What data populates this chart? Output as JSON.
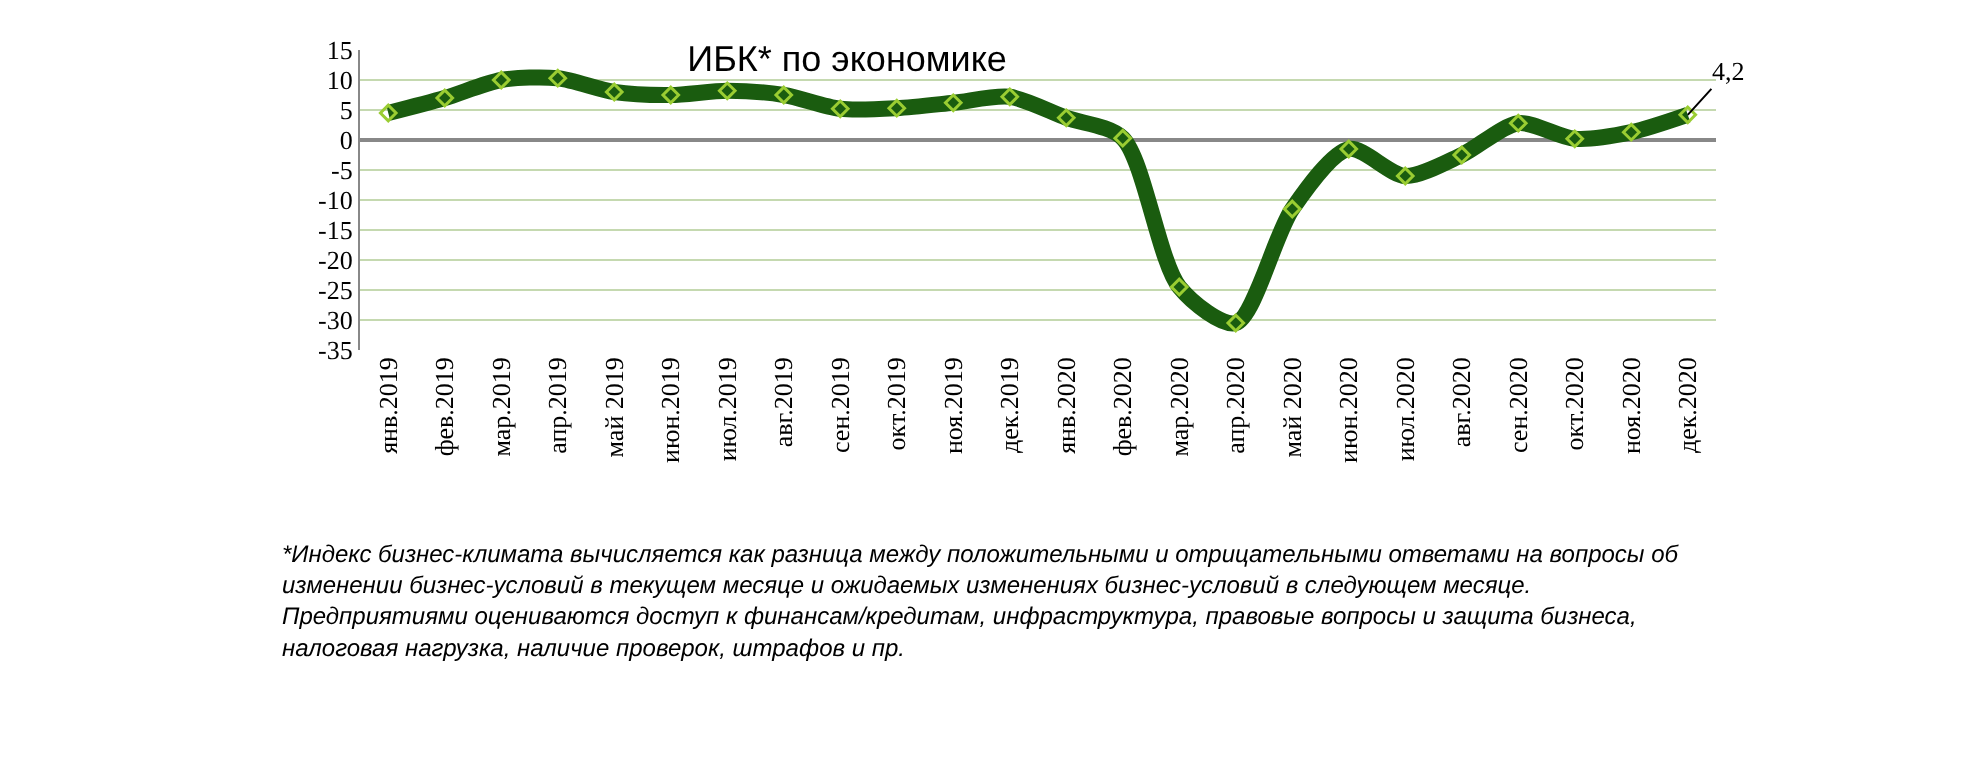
{
  "chart_data": {
    "type": "line",
    "title": "ИБК* по экономике",
    "categories": [
      "янв.2019",
      "фев.2019",
      "мар.2019",
      "апр.2019",
      "май 2019",
      "июн.2019",
      "июл.2019",
      "авг.2019",
      "сен.2019",
      "окт.2019",
      "ноя.2019",
      "дек.2019",
      "янв.2020",
      "фев.2020",
      "мар.2020",
      "апр.2020",
      "май 2020",
      "июн.2020",
      "июл.2020",
      "авг.2020",
      "сен.2020",
      "окт.2020",
      "ноя.2020",
      "дек.2020"
    ],
    "series": [
      {
        "color": "#1a5c0f",
        "values": [
          4.5,
          7,
          10,
          10.3,
          8,
          7.5,
          8.2,
          7.5,
          5.2,
          5.3,
          6.2,
          7.2,
          3.7,
          0.3,
          -24.5,
          -30.5,
          -11.5,
          -1.5,
          -6,
          -2.5,
          2.8,
          0.2,
          1.3,
          4.2
        ],
        "value_labels": [
          null,
          null,
          null,
          null,
          null,
          null,
          null,
          null,
          null,
          null,
          null,
          null,
          null,
          null,
          null,
          null,
          null,
          null,
          null,
          null,
          null,
          null,
          null,
          "4,2"
        ]
      }
    ],
    "ylim": [
      -35,
      15
    ],
    "yticks": [
      -35,
      -30,
      -25,
      -20,
      -15,
      -10,
      -5,
      0,
      5,
      10,
      15
    ],
    "grid": "y",
    "legend": false,
    "marker": "diamond",
    "line_style": "solid",
    "annotations": [
      "*Индекс бизнес-климата вычисляется как разница между положительными и отрицательными ответами на вопросы об изменении бизнес-условий в текущем месяце и ожидаемых изменениях бизнес-условий в следующем месяце. Предприятиями оцениваются доступ к финансам/кредитам, инфраструктура, правовые вопросы и защита бизнеса, налоговая нагрузка, наличие проверок, штрафов и пр."
    ]
  }
}
